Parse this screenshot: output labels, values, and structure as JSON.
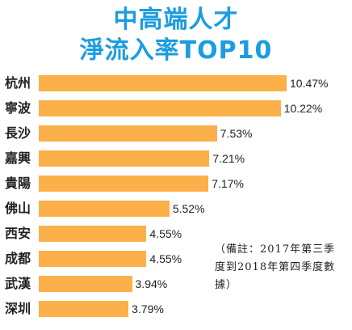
{
  "chart_data": {
    "type": "bar",
    "orientation": "horizontal",
    "title_line1": "中高端人才",
    "title_line2": "淨流入率TOP10",
    "categories": [
      "杭州",
      "寧波",
      "長沙",
      "嘉興",
      "貴陽",
      "佛山",
      "西安",
      "成都",
      "武漢",
      "深圳"
    ],
    "values": [
      10.47,
      10.22,
      7.53,
      7.21,
      7.17,
      5.52,
      4.55,
      4.55,
      3.94,
      3.79
    ],
    "value_labels": [
      "10.47%",
      "10.22%",
      "7.53%",
      "7.21%",
      "7.17%",
      "5.52%",
      "4.55%",
      "4.55%",
      "3.94%",
      "3.79%"
    ],
    "bar_color": "#fbb04a",
    "title_color": "#1a9de0",
    "grid": false,
    "note": "（備註：2017年第三季度到2018年第四季度數據）"
  }
}
